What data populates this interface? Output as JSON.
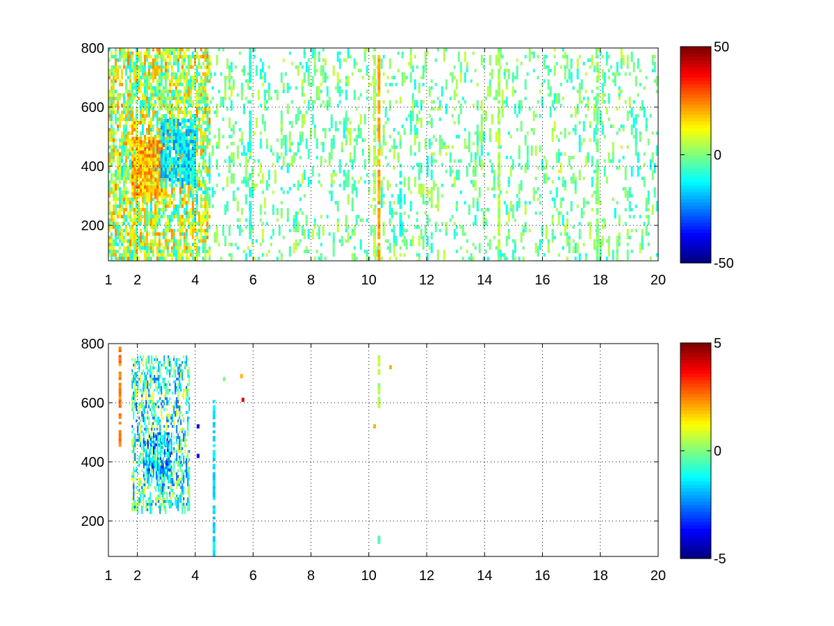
{
  "figure": {
    "background": "#ffffff",
    "colormap": "jet"
  },
  "chart_data": [
    {
      "type": "heatmap",
      "title": "",
      "xlabel": "",
      "ylabel": "",
      "xlim": [
        1,
        20
      ],
      "ylim": [
        80,
        800
      ],
      "xticks": [
        1,
        2,
        4,
        6,
        8,
        10,
        12,
        14,
        16,
        18,
        20
      ],
      "xtick_labels": [
        "1",
        "2",
        "4",
        "6",
        "8",
        "10",
        "12",
        "14",
        "16",
        "18",
        "20"
      ],
      "yticks": [
        200,
        400,
        600,
        800
      ],
      "ytick_labels": [
        "200",
        "400",
        "600",
        "800"
      ],
      "grid": true,
      "colorbar": {
        "min": -50,
        "max": 50,
        "tick_labels": [
          "50",
          "0",
          "-50"
        ],
        "ticks": [
          50,
          0,
          -50
        ]
      },
      "background_value": "NaN (white)",
      "features": [
        {
          "x": [
            1.0,
            4.5
          ],
          "y": [
            80,
            800
          ],
          "density": 0.55,
          "value_range": [
            -15,
            25
          ],
          "note": "dense main cluster"
        },
        {
          "x": [
            1.8,
            3.0
          ],
          "y": [
            300,
            500
          ],
          "density": 0.85,
          "value_range": [
            10,
            30
          ],
          "note": "warm core"
        },
        {
          "x": [
            2.8,
            4.0
          ],
          "y": [
            350,
            560
          ],
          "density": 0.7,
          "value_range": [
            -25,
            -5
          ],
          "note": "cool patch"
        },
        {
          "x": [
            4.5,
            20.0
          ],
          "y": [
            80,
            800
          ],
          "density": 0.12,
          "value_range": [
            -12,
            8
          ],
          "note": "sparse scattered cells"
        }
      ],
      "columns": [
        {
          "x": 5.9,
          "y": [
            80,
            800
          ],
          "value": -8
        },
        {
          "x": 10.2,
          "y": [
            80,
            800
          ],
          "value": 5
        },
        {
          "x": 10.35,
          "y": [
            80,
            800
          ],
          "value": 20
        },
        {
          "x": 11.1,
          "y": [
            150,
            420
          ],
          "value": -10
        },
        {
          "x": 14.5,
          "y": [
            80,
            800
          ],
          "value": 5
        },
        {
          "x": 17.9,
          "y": [
            80,
            800
          ],
          "value": 0
        }
      ]
    },
    {
      "type": "heatmap",
      "title": "",
      "xlabel": "",
      "ylabel": "",
      "xlim": [
        1,
        20
      ],
      "ylim": [
        80,
        800
      ],
      "xticks": [
        1,
        2,
        4,
        6,
        8,
        10,
        12,
        14,
        16,
        18,
        20
      ],
      "xtick_labels": [
        "1",
        "2",
        "4",
        "6",
        "8",
        "10",
        "12",
        "14",
        "16",
        "18",
        "20"
      ],
      "yticks": [
        200,
        400,
        600,
        800
      ],
      "ytick_labels": [
        "200",
        "400",
        "600",
        "800"
      ],
      "grid": true,
      "colorbar": {
        "min": -5,
        "max": 5,
        "tick_labels": [
          "5",
          "0",
          "-5"
        ],
        "ticks": [
          5,
          0,
          -5
        ]
      },
      "background_value": "NaN (white)",
      "features": [
        {
          "x": [
            1.8,
            3.8
          ],
          "y": [
            250,
            760
          ],
          "density": 0.35,
          "value_range": [
            -3,
            1.5
          ],
          "note": "main cluster"
        },
        {
          "x": [
            2.2,
            3.2
          ],
          "y": [
            350,
            500
          ],
          "density": 0.5,
          "value_range": [
            -3.5,
            -0.5
          ],
          "note": "cool core"
        }
      ],
      "columns": [
        {
          "x": 1.4,
          "y": [
            460,
            790
          ],
          "value": 2.5
        },
        {
          "x": 4.65,
          "y": [
            80,
            610
          ],
          "value": -1.5
        },
        {
          "x": 10.35,
          "y": [
            590,
            770
          ],
          "value": 0.5
        },
        {
          "x": 10.35,
          "y": [
            130,
            160
          ],
          "value": -0.5
        }
      ],
      "points": [
        {
          "x": 5.6,
          "y": 690,
          "value": 2
        },
        {
          "x": 5.65,
          "y": 610,
          "value": 4
        },
        {
          "x": 10.2,
          "y": 520,
          "value": 2
        },
        {
          "x": 10.75,
          "y": 720,
          "value": 2
        },
        {
          "x": 4.1,
          "y": 420,
          "value": -4
        },
        {
          "x": 4.1,
          "y": 520,
          "value": -4
        },
        {
          "x": 5.0,
          "y": 680,
          "value": 0
        }
      ]
    }
  ]
}
